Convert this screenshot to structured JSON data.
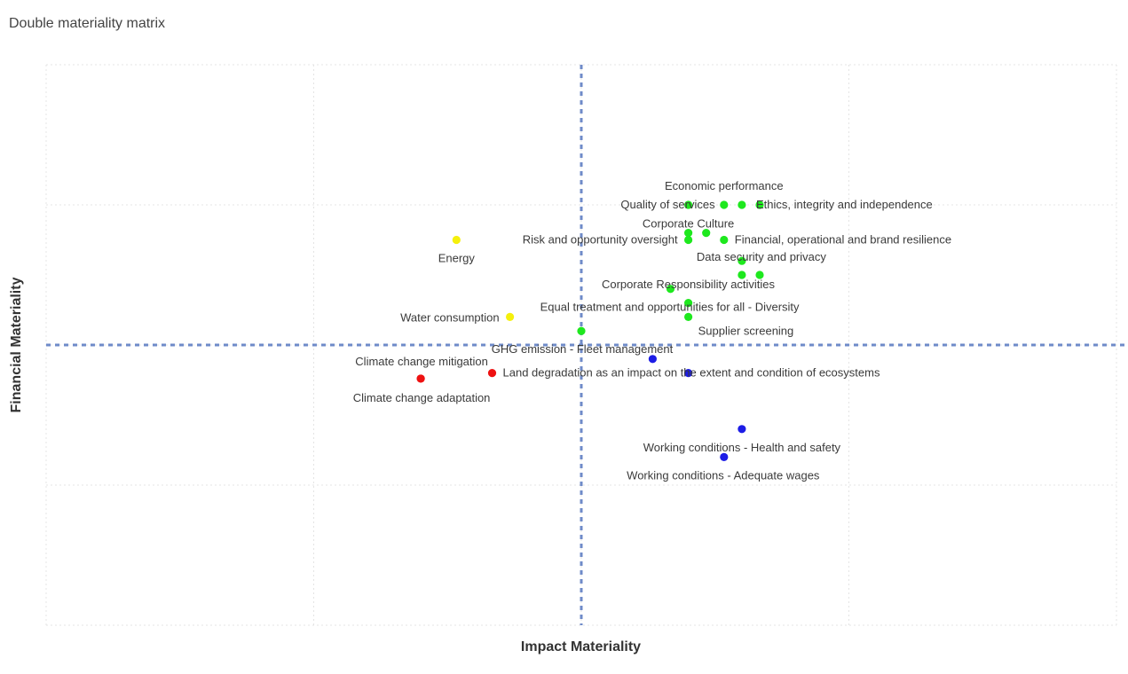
{
  "chart_data": {
    "type": "scatter",
    "title": "Double materiality matrix",
    "xlabel": "Impact Materiality",
    "ylabel": "Financial Materiality",
    "xlim": [
      0,
      60
    ],
    "ylim": [
      0,
      40
    ],
    "grid": true,
    "tick_labels_shown": false,
    "reference_lines": {
      "x": 30,
      "y": 20,
      "style": "dashed",
      "color": "#6f8bc9"
    },
    "colors": {
      "green": "#1ee81e",
      "yellow": "#f5f00c",
      "red": "#ee1111",
      "blue": "#1c1ce6"
    },
    "points": [
      {
        "label": "Quality of services",
        "x": 36,
        "y": 30,
        "group": "green"
      },
      {
        "label": "Economic performance",
        "x": 38,
        "y": 30,
        "group": "green"
      },
      {
        "label": "",
        "x": 39,
        "y": 30,
        "group": "green"
      },
      {
        "label": "Ethics, integrity and independence",
        "x": 40,
        "y": 30,
        "group": "green"
      },
      {
        "label": "Corporate Culture",
        "x": 36,
        "y": 28,
        "group": "green"
      },
      {
        "label": "",
        "x": 37,
        "y": 28,
        "group": "green"
      },
      {
        "label": "Risk and opportunity oversight",
        "x": 36,
        "y": 27.5,
        "group": "green"
      },
      {
        "label": "Financial, operational and brand resilience",
        "x": 38,
        "y": 27.5,
        "group": "green"
      },
      {
        "label": "Data security and privacy",
        "x": 39,
        "y": 26,
        "group": "green"
      },
      {
        "label": "",
        "x": 39,
        "y": 25,
        "group": "green"
      },
      {
        "label": "",
        "x": 40,
        "y": 25,
        "group": "green"
      },
      {
        "label": "Corporate Responsibility activities",
        "x": 35,
        "y": 24,
        "group": "green"
      },
      {
        "label": "Equal treatment and opportunities for all - Diversity",
        "x": 36,
        "y": 23,
        "group": "green"
      },
      {
        "label": "Supplier screening",
        "x": 36,
        "y": 22,
        "group": "green"
      },
      {
        "label": "GHG emission - Fleet management",
        "x": 30,
        "y": 21,
        "group": "green"
      },
      {
        "label": "Energy",
        "x": 23,
        "y": 27.5,
        "group": "yellow"
      },
      {
        "label": "Water consumption",
        "x": 26,
        "y": 22,
        "group": "yellow"
      },
      {
        "label": "Land degradation as an impact on the extent and condition of ecosystems",
        "x": 25,
        "y": 18,
        "group": "red"
      },
      {
        "label": "Climate change mitigation",
        "x": 21,
        "y": 17.6,
        "group": "red"
      },
      {
        "label": "Climate change adaptation",
        "x": 21,
        "y": 17.6,
        "group": "red"
      },
      {
        "label": "",
        "x": 34,
        "y": 19,
        "group": "blue"
      },
      {
        "label": "",
        "x": 36,
        "y": 18,
        "group": "blue"
      },
      {
        "label": "Working conditions - Health and safety",
        "x": 39,
        "y": 14,
        "group": "blue"
      },
      {
        "label": "Working conditions - Adequate wages",
        "x": 38,
        "y": 12,
        "group": "blue"
      }
    ]
  }
}
